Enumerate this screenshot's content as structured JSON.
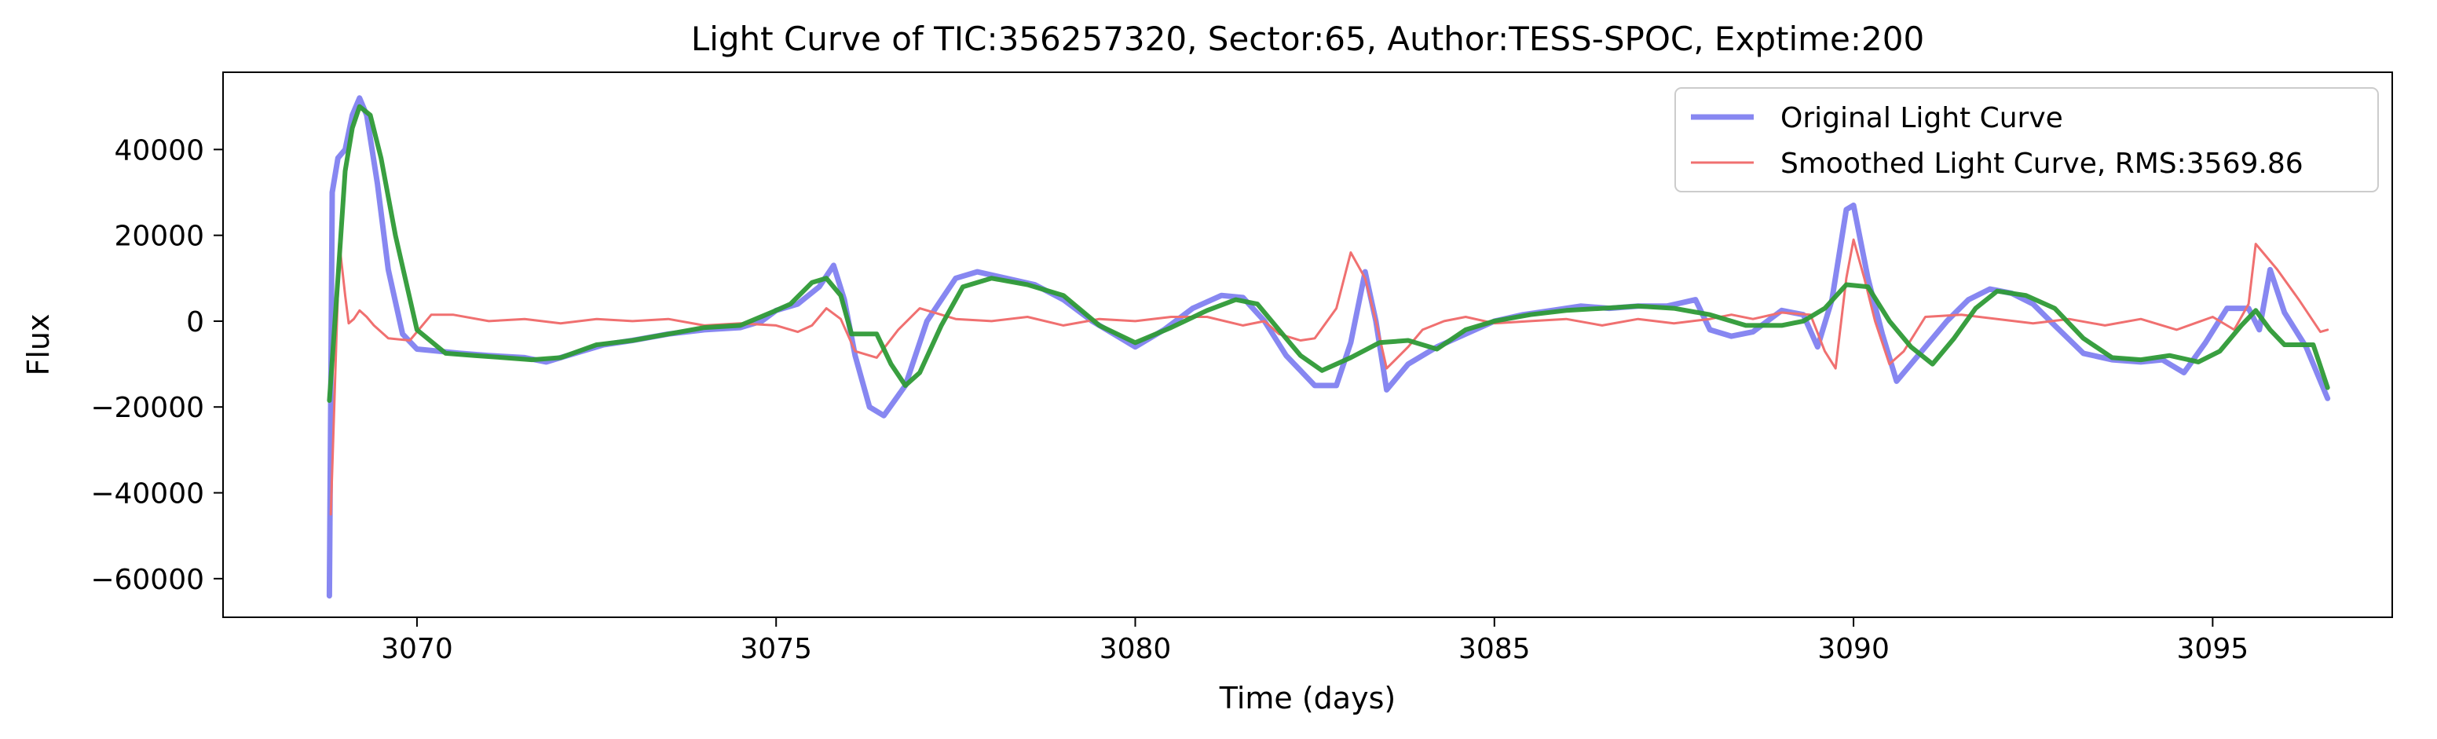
{
  "chart_data": {
    "type": "line",
    "title": "Light Curve of TIC:356257320, Sector:65, Author:TESS-SPOC, Exptime:200",
    "xlabel": "Time (days)",
    "ylabel": "Flux",
    "xlim": [
      3067.3,
      3097.5
    ],
    "ylim": [
      -69000,
      58000
    ],
    "x_ticks": [
      3070,
      3075,
      3080,
      3085,
      3090,
      3095
    ],
    "y_ticks": [
      -60000,
      -40000,
      -20000,
      0,
      20000,
      40000
    ],
    "x_tick_labels": [
      "3070",
      "3075",
      "3080",
      "3085",
      "3090",
      "3095"
    ],
    "y_tick_labels": [
      "−60000",
      "−40000",
      "−20000",
      "0",
      "20000",
      "40000"
    ],
    "grid": false,
    "legend_position": "top-right",
    "series": [
      {
        "name": "Original Light Curve",
        "color": "#7a7af0",
        "x": [
          3068.78,
          3068.82,
          3068.9,
          3069.0,
          3069.1,
          3069.2,
          3069.3,
          3069.45,
          3069.6,
          3069.8,
          3070.0,
          3070.3,
          3070.6,
          3071.0,
          3071.5,
          3071.8,
          3072.2,
          3072.6,
          3073.0,
          3073.5,
          3074.0,
          3074.5,
          3074.8,
          3075.0,
          3075.3,
          3075.6,
          3075.8,
          3075.95,
          3076.1,
          3076.3,
          3076.5,
          3076.8,
          3077.1,
          3077.5,
          3077.8,
          3078.2,
          3078.6,
          3079.0,
          3079.4,
          3079.8,
          3080.0,
          3080.4,
          3080.8,
          3081.2,
          3081.5,
          3081.8,
          3082.1,
          3082.5,
          3082.8,
          3083.0,
          3083.2,
          3083.35,
          3083.5,
          3083.8,
          3084.2,
          3084.6,
          3085.0,
          3085.4,
          3085.8,
          3086.2,
          3086.6,
          3087.0,
          3087.4,
          3087.8,
          3088.0,
          3088.3,
          3088.6,
          3089.0,
          3089.3,
          3089.5,
          3089.7,
          3089.9,
          3090.0,
          3090.2,
          3090.4,
          3090.6,
          3090.8,
          3091.0,
          3091.3,
          3091.6,
          3091.9,
          3092.2,
          3092.5,
          3092.8,
          3093.2,
          3093.6,
          3094.0,
          3094.3,
          3094.6,
          3094.9,
          3095.2,
          3095.5,
          3095.65,
          3095.8,
          3096.0,
          3096.3,
          3096.6
        ],
        "y": [
          -64000,
          30000,
          38000,
          40000,
          48000,
          52000,
          48000,
          32000,
          12000,
          -3000,
          -6500,
          -7000,
          -7500,
          -8000,
          -8500,
          -9500,
          -7500,
          -5500,
          -4500,
          -3000,
          -2000,
          -1500,
          0,
          2500,
          4000,
          8000,
          13000,
          5000,
          -8000,
          -20000,
          -22000,
          -15000,
          0,
          10000,
          11500,
          10000,
          8500,
          5000,
          0,
          -4000,
          -6000,
          -2000,
          3000,
          6000,
          5500,
          0,
          -8000,
          -15000,
          -15000,
          -5000,
          11500,
          0,
          -16000,
          -10000,
          -6000,
          -3000,
          0,
          1500,
          2500,
          3500,
          3000,
          3500,
          3500,
          5000,
          -2000,
          -3500,
          -2500,
          2500,
          1500,
          -6000,
          5000,
          26000,
          27000,
          10000,
          -3000,
          -14000,
          -10000,
          -6000,
          0,
          5000,
          7500,
          6500,
          4000,
          -1000,
          -7500,
          -9000,
          -9500,
          -9000,
          -12000,
          -5000,
          3000,
          3000,
          -2000,
          12000,
          2000,
          -6000,
          -18000
        ]
      },
      {
        "name": "Smoothed Light Curve, RMS:3569.86",
        "color": "#f07070",
        "x": [
          3068.8,
          3068.92,
          3069.0,
          3069.05,
          3069.12,
          3069.2,
          3069.3,
          3069.4,
          3069.6,
          3069.9,
          3070.2,
          3070.5,
          3071.0,
          3071.5,
          3072.0,
          3072.5,
          3073.0,
          3073.5,
          3074.0,
          3074.5,
          3075.0,
          3075.3,
          3075.5,
          3075.7,
          3075.9,
          3076.1,
          3076.4,
          3076.7,
          3077.0,
          3077.5,
          3078.0,
          3078.5,
          3079.0,
          3079.5,
          3080.0,
          3080.5,
          3081.0,
          3081.5,
          3081.8,
          3082.0,
          3082.3,
          3082.5,
          3082.8,
          3083.0,
          3083.2,
          3083.35,
          3083.5,
          3083.8,
          3084.0,
          3084.3,
          3084.6,
          3085.0,
          3085.5,
          3086.0,
          3086.5,
          3087.0,
          3087.5,
          3088.0,
          3088.3,
          3088.6,
          3089.0,
          3089.4,
          3089.6,
          3089.75,
          3089.9,
          3090.0,
          3090.15,
          3090.3,
          3090.5,
          3090.7,
          3091.0,
          3091.5,
          3092.0,
          3092.5,
          3093.0,
          3093.5,
          3094.0,
          3094.5,
          3095.0,
          3095.3,
          3095.5,
          3095.6,
          3095.9,
          3096.2,
          3096.5,
          3096.6
        ],
        "y": [
          -45000,
          18000,
          6000,
          -500,
          500,
          2500,
          1000,
          -1000,
          -4000,
          -4500,
          1500,
          1500,
          0,
          500,
          -500,
          500,
          0,
          500,
          -1000,
          -500,
          -1000,
          -2500,
          -1000,
          3000,
          500,
          -7000,
          -8500,
          -2000,
          3000,
          500,
          0,
          1000,
          -1000,
          500,
          0,
          1000,
          1000,
          -1000,
          0,
          -3000,
          -4500,
          -4000,
          3000,
          16000,
          10000,
          0,
          -11000,
          -6000,
          -2000,
          0,
          1000,
          -500,
          0,
          500,
          -1000,
          500,
          -500,
          500,
          1500,
          500,
          2000,
          1500,
          -7000,
          -11000,
          10000,
          19000,
          10000,
          0,
          -10000,
          -7000,
          1000,
          1500,
          500,
          -500,
          500,
          -1000,
          500,
          -2000,
          1000,
          -2000,
          4000,
          18000,
          12000,
          5000,
          -2500,
          -2000
        ]
      },
      {
        "name": "",
        "color": "#2e9a36",
        "x": [
          3068.78,
          3068.9,
          3069.0,
          3069.1,
          3069.2,
          3069.35,
          3069.5,
          3069.7,
          3070.0,
          3070.4,
          3070.8,
          3071.2,
          3071.6,
          3072.0,
          3072.5,
          3073.0,
          3073.5,
          3074.0,
          3074.5,
          3075.0,
          3075.2,
          3075.5,
          3075.7,
          3075.9,
          3076.05,
          3076.2,
          3076.4,
          3076.6,
          3076.8,
          3077.0,
          3077.3,
          3077.6,
          3078.0,
          3078.5,
          3079.0,
          3079.5,
          3080.0,
          3080.5,
          3081.0,
          3081.4,
          3081.7,
          3082.0,
          3082.3,
          3082.6,
          3083.0,
          3083.4,
          3083.8,
          3084.2,
          3084.6,
          3085.0,
          3085.5,
          3086.0,
          3086.5,
          3087.0,
          3087.5,
          3088.0,
          3088.5,
          3089.0,
          3089.3,
          3089.6,
          3089.9,
          3090.2,
          3090.5,
          3090.8,
          3091.1,
          3091.4,
          3091.7,
          3092.0,
          3092.4,
          3092.8,
          3093.2,
          3093.6,
          3094.0,
          3094.4,
          3094.8,
          3095.1,
          3095.4,
          3095.6,
          3095.8,
          3096.0,
          3096.2,
          3096.4,
          3096.6
        ],
        "y": [
          -18500,
          10000,
          35000,
          45000,
          50000,
          48000,
          38000,
          20000,
          -2000,
          -7500,
          -8000,
          -8500,
          -9000,
          -8500,
          -5500,
          -4500,
          -3000,
          -1500,
          -1000,
          2500,
          4000,
          9000,
          10000,
          6000,
          -3000,
          -3000,
          -3000,
          -10000,
          -15000,
          -12000,
          -1000,
          8000,
          10000,
          8500,
          6000,
          -1000,
          -5000,
          -1500,
          2500,
          5000,
          4000,
          -2000,
          -8000,
          -11500,
          -8500,
          -5000,
          -4500,
          -6500,
          -2000,
          0,
          1500,
          2500,
          3000,
          3500,
          3000,
          1500,
          -1000,
          -1000,
          0,
          3000,
          8500,
          8000,
          0,
          -6000,
          -10000,
          -4000,
          3000,
          7000,
          6000,
          3000,
          -4000,
          -8500,
          -9000,
          -8000,
          -9500,
          -7000,
          -1000,
          2500,
          -2000,
          -5500,
          -5500,
          -5500,
          -15500
        ]
      }
    ]
  }
}
